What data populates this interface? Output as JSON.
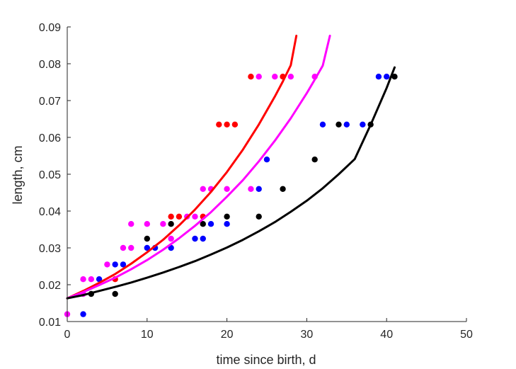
{
  "chart_data": {
    "type": "scatter",
    "xlabel": "time since birth, d",
    "ylabel": "length, cm",
    "xlim": [
      0,
      50
    ],
    "ylim": [
      0.01,
      0.09
    ],
    "xticks": [
      "0",
      "10",
      "20",
      "30",
      "40",
      "50"
    ],
    "yticks": [
      "0.01",
      "0.02",
      "0.03",
      "0.04",
      "0.05",
      "0.06",
      "0.07",
      "0.08",
      "0.09"
    ],
    "grid": false,
    "legend": "none",
    "series": [
      {
        "color": "#ff0000",
        "points": [
          [
            17,
            0.0385
          ],
          [
            13,
            0.0385
          ],
          [
            14,
            0.0385
          ],
          [
            19,
            0.0635
          ],
          [
            20,
            0.0635
          ],
          [
            21,
            0.0635
          ],
          [
            23,
            0.0765
          ],
          [
            27,
            0.0765
          ],
          [
            6,
            0.0215
          ]
        ],
        "curve": [
          [
            0,
            0.0163
          ],
          [
            2,
            0.0183
          ],
          [
            4,
            0.0205
          ],
          [
            6,
            0.0229
          ],
          [
            8,
            0.0257
          ],
          [
            10,
            0.0288
          ],
          [
            12,
            0.0322
          ],
          [
            14,
            0.0361
          ],
          [
            16,
            0.0404
          ],
          [
            18,
            0.0452
          ],
          [
            20,
            0.0506
          ],
          [
            22,
            0.0567
          ],
          [
            24,
            0.0635
          ],
          [
            26,
            0.0711
          ],
          [
            27,
            0.0752
          ],
          [
            27.5,
            0.0774
          ],
          [
            28,
            0.0796
          ],
          [
            28.7,
            0.0876
          ]
        ]
      },
      {
        "color": "#ff00ff",
        "points": [
          [
            0,
            0.012
          ],
          [
            2,
            0.0175
          ],
          [
            2,
            0.0215
          ],
          [
            3,
            0.0215
          ],
          [
            5,
            0.0255
          ],
          [
            7,
            0.03
          ],
          [
            8,
            0.03
          ],
          [
            8,
            0.0365
          ],
          [
            10,
            0.0365
          ],
          [
            12,
            0.0365
          ],
          [
            13,
            0.0325
          ],
          [
            15,
            0.0385
          ],
          [
            16,
            0.0385
          ],
          [
            17,
            0.046
          ],
          [
            18,
            0.046
          ],
          [
            20,
            0.046
          ],
          [
            23,
            0.046
          ],
          [
            24,
            0.0765
          ],
          [
            26,
            0.0765
          ],
          [
            28,
            0.0765
          ],
          [
            31,
            0.0765
          ]
        ],
        "curve": [
          [
            0,
            0.0163
          ],
          [
            2,
            0.018
          ],
          [
            4,
            0.0199
          ],
          [
            6,
            0.0219
          ],
          [
            8,
            0.0242
          ],
          [
            10,
            0.0267
          ],
          [
            12,
            0.0295
          ],
          [
            14,
            0.0326
          ],
          [
            16,
            0.036
          ],
          [
            18,
            0.0397
          ],
          [
            20,
            0.0439
          ],
          [
            22,
            0.0484
          ],
          [
            24,
            0.0535
          ],
          [
            26,
            0.0591
          ],
          [
            28,
            0.0652
          ],
          [
            30,
            0.072
          ],
          [
            31,
            0.0757
          ],
          [
            32,
            0.0795
          ],
          [
            32.9,
            0.0876
          ]
        ]
      },
      {
        "color": "#0000ff",
        "points": [
          [
            2,
            0.012
          ],
          [
            4,
            0.0215
          ],
          [
            6,
            0.0255
          ],
          [
            7,
            0.0255
          ],
          [
            10,
            0.03
          ],
          [
            11,
            0.03
          ],
          [
            13,
            0.03
          ],
          [
            16,
            0.0325
          ],
          [
            17,
            0.0325
          ],
          [
            18,
            0.0365
          ],
          [
            20,
            0.0365
          ],
          [
            24,
            0.046
          ],
          [
            25,
            0.054
          ],
          [
            32,
            0.0635
          ],
          [
            35,
            0.0635
          ],
          [
            37,
            0.0635
          ],
          [
            39,
            0.0765
          ],
          [
            40,
            0.0765
          ]
        ]
      },
      {
        "color": "#000000",
        "points": [
          [
            3,
            0.0175
          ],
          [
            6,
            0.0175
          ],
          [
            10,
            0.0325
          ],
          [
            13,
            0.0365
          ],
          [
            17,
            0.0365
          ],
          [
            20,
            0.0385
          ],
          [
            24,
            0.0385
          ],
          [
            27,
            0.046
          ],
          [
            31,
            0.054
          ],
          [
            34,
            0.0635
          ],
          [
            38,
            0.0635
          ],
          [
            41,
            0.0765
          ]
        ],
        "curve": [
          [
            0,
            0.0163
          ],
          [
            2,
            0.0172
          ],
          [
            4,
            0.0183
          ],
          [
            6,
            0.0194
          ],
          [
            8,
            0.0206
          ],
          [
            10,
            0.0219
          ],
          [
            12,
            0.0233
          ],
          [
            14,
            0.0248
          ],
          [
            16,
            0.0264
          ],
          [
            18,
            0.0282
          ],
          [
            20,
            0.0301
          ],
          [
            22,
            0.0322
          ],
          [
            24,
            0.0345
          ],
          [
            26,
            0.037
          ],
          [
            28,
            0.0398
          ],
          [
            30,
            0.0428
          ],
          [
            32,
            0.0462
          ],
          [
            34,
            0.05
          ],
          [
            36,
            0.0541
          ],
          [
            38,
            0.0634
          ],
          [
            40,
            0.0734
          ],
          [
            41,
            0.079
          ]
        ]
      }
    ]
  }
}
